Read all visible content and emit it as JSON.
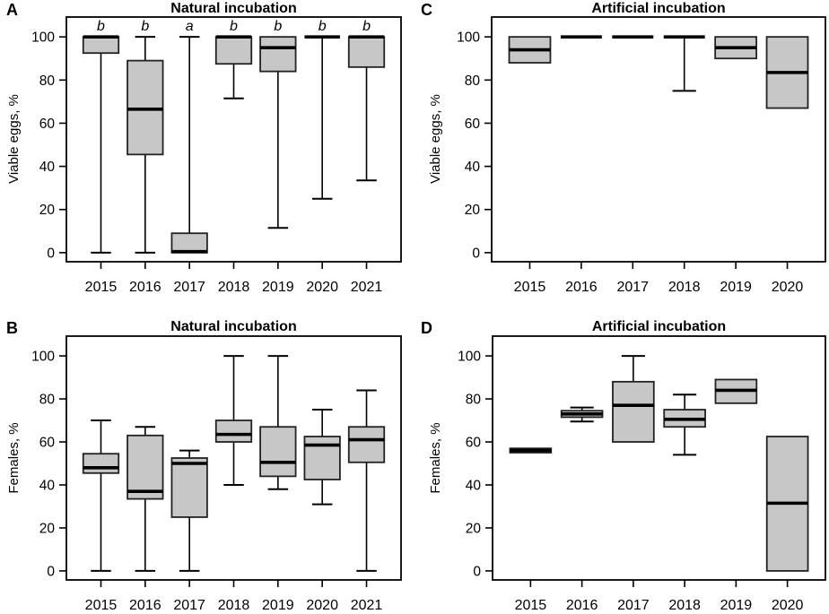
{
  "figure": {
    "background": "#ffffff",
    "colors": {
      "box_fill": "#c7c7c7",
      "box_border": "#222222",
      "median": "#000000",
      "axis": "#000000",
      "text": "#000000"
    }
  },
  "chart_data": [
    {
      "type": "boxplot",
      "panel_label": "A",
      "title": "Natural incubation",
      "ylabel": "Viable eggs, %",
      "xlabel": "",
      "ylim": [
        0,
        105
      ],
      "yticks": [
        0,
        20,
        40,
        60,
        80,
        100
      ],
      "grid": false,
      "legend": null,
      "sig_letter_y": 105,
      "categories": [
        "2015",
        "2016",
        "2017",
        "2018",
        "2019",
        "2020",
        "2021"
      ],
      "series": [
        {
          "category": "2015",
          "whisker_low": 0,
          "q1": 92.5,
          "median": 100,
          "q3": 100,
          "whisker_high": 100,
          "sig_letter": "b"
        },
        {
          "category": "2016",
          "whisker_low": 0,
          "q1": 45.5,
          "median": 66.5,
          "q3": 89,
          "whisker_high": 100,
          "sig_letter": "b"
        },
        {
          "category": "2017",
          "whisker_low": 0,
          "q1": 0,
          "median": 0.5,
          "q3": 9,
          "whisker_high": 100,
          "sig_letter": "a"
        },
        {
          "category": "2018",
          "whisker_low": 71.5,
          "q1": 87.5,
          "median": 100,
          "q3": 100,
          "whisker_high": 100,
          "sig_letter": "b"
        },
        {
          "category": "2019",
          "whisker_low": 11.5,
          "q1": 84,
          "median": 95,
          "q3": 100,
          "whisker_high": 100,
          "sig_letter": "b"
        },
        {
          "category": "2020",
          "whisker_low": 25,
          "q1": 100,
          "median": 100,
          "q3": 100,
          "whisker_high": 100,
          "sig_letter": "b"
        },
        {
          "category": "2021",
          "whisker_low": 33.5,
          "q1": 86,
          "median": 100,
          "q3": 100,
          "whisker_high": 100,
          "sig_letter": "b"
        }
      ]
    },
    {
      "type": "boxplot",
      "panel_label": "B",
      "title": "Natural incubation",
      "ylabel": "Females, %",
      "xlabel": "",
      "ylim": [
        0,
        105
      ],
      "yticks": [
        0,
        20,
        40,
        60,
        80,
        100
      ],
      "grid": false,
      "legend": null,
      "sig_letter_y": null,
      "categories": [
        "2015",
        "2016",
        "2017",
        "2018",
        "2019",
        "2020",
        "2021"
      ],
      "series": [
        {
          "category": "2015",
          "whisker_low": 0,
          "q1": 45.5,
          "median": 48,
          "q3": 54.5,
          "whisker_high": 70,
          "sig_letter": null
        },
        {
          "category": "2016",
          "whisker_low": 0,
          "q1": 33.5,
          "median": 37,
          "q3": 63,
          "whisker_high": 67,
          "sig_letter": null
        },
        {
          "category": "2017",
          "whisker_low": 0,
          "q1": 25,
          "median": 50,
          "q3": 52.5,
          "whisker_high": 56,
          "sig_letter": null
        },
        {
          "category": "2018",
          "whisker_low": 40,
          "q1": 60,
          "median": 63.5,
          "q3": 70,
          "whisker_high": 100,
          "sig_letter": null
        },
        {
          "category": "2019",
          "whisker_low": 38,
          "q1": 44,
          "median": 50.5,
          "q3": 67,
          "whisker_high": 100,
          "sig_letter": null
        },
        {
          "category": "2020",
          "whisker_low": 31,
          "q1": 42.5,
          "median": 58.5,
          "q3": 62.5,
          "whisker_high": 75,
          "sig_letter": null
        },
        {
          "category": "2021",
          "whisker_low": 0,
          "q1": 50.5,
          "median": 61,
          "q3": 67,
          "whisker_high": 84,
          "sig_letter": null
        }
      ]
    },
    {
      "type": "boxplot",
      "panel_label": "C",
      "title": "Artificial incubation",
      "ylabel": "Viable eggs, %",
      "xlabel": "",
      "ylim": [
        0,
        105
      ],
      "yticks": [
        0,
        20,
        40,
        60,
        80,
        100
      ],
      "grid": false,
      "legend": null,
      "sig_letter_y": null,
      "categories": [
        "2015",
        "2016",
        "2017",
        "2018",
        "2019",
        "2020"
      ],
      "series": [
        {
          "category": "2015",
          "whisker_low": 88,
          "q1": 88,
          "median": 94,
          "q3": 100,
          "whisker_high": 100,
          "sig_letter": null
        },
        {
          "category": "2016",
          "whisker_low": 100,
          "q1": 100,
          "median": 100,
          "q3": 100,
          "whisker_high": 100,
          "sig_letter": null
        },
        {
          "category": "2017",
          "whisker_low": 100,
          "q1": 100,
          "median": 100,
          "q3": 100,
          "whisker_high": 100,
          "sig_letter": null
        },
        {
          "category": "2018",
          "whisker_low": 75,
          "q1": 100,
          "median": 100,
          "q3": 100,
          "whisker_high": 100,
          "sig_letter": null
        },
        {
          "category": "2019",
          "whisker_low": 90,
          "q1": 90,
          "median": 95,
          "q3": 100,
          "whisker_high": 100,
          "sig_letter": null
        },
        {
          "category": "2020",
          "whisker_low": 67,
          "q1": 67,
          "median": 83.5,
          "q3": 100,
          "whisker_high": 100,
          "sig_letter": null
        }
      ]
    },
    {
      "type": "boxplot",
      "panel_label": "D",
      "title": "Artificial incubation",
      "ylabel": "Females, %",
      "xlabel": "",
      "ylim": [
        0,
        105
      ],
      "yticks": [
        0,
        20,
        40,
        60,
        80,
        100
      ],
      "grid": false,
      "legend": null,
      "sig_letter_y": null,
      "categories": [
        "2015",
        "2016",
        "2017",
        "2018",
        "2019",
        "2020"
      ],
      "series": [
        {
          "category": "2015",
          "whisker_low": 55,
          "q1": 55,
          "median": 56,
          "q3": 57,
          "whisker_high": 57,
          "sig_letter": null
        },
        {
          "category": "2016",
          "whisker_low": 69.5,
          "q1": 71.5,
          "median": 73,
          "q3": 74.5,
          "whisker_high": 76,
          "sig_letter": null
        },
        {
          "category": "2017",
          "whisker_low": 60,
          "q1": 60,
          "median": 77,
          "q3": 88,
          "whisker_high": 100,
          "sig_letter": null
        },
        {
          "category": "2018",
          "whisker_low": 54,
          "q1": 67,
          "median": 70.5,
          "q3": 75,
          "whisker_high": 82,
          "sig_letter": null
        },
        {
          "category": "2019",
          "whisker_low": 78,
          "q1": 78,
          "median": 84,
          "q3": 89,
          "whisker_high": 89,
          "sig_letter": null
        },
        {
          "category": "2020",
          "whisker_low": 0,
          "q1": 0,
          "median": 31.5,
          "q3": 62.5,
          "whisker_high": 62.5,
          "sig_letter": null
        }
      ]
    }
  ]
}
